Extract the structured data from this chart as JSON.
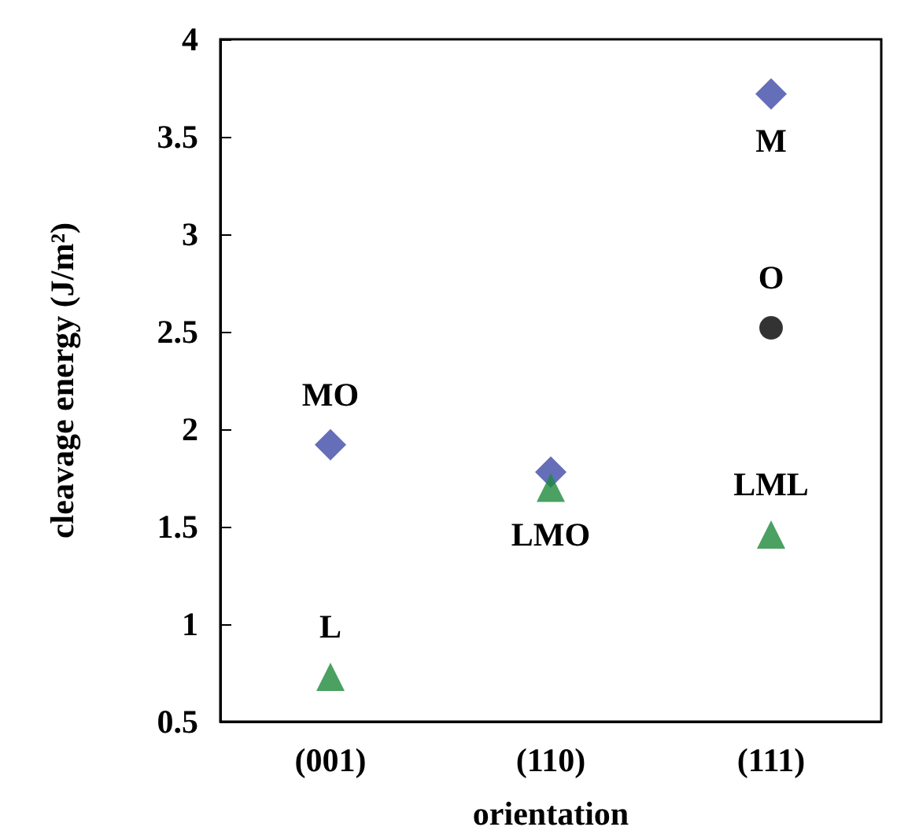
{
  "chart_data": {
    "type": "scatter",
    "xlabel": "orientation",
    "ylabel": "cleavage energy (J/m²)",
    "categories": [
      "(001)",
      "(110)",
      "(111)"
    ],
    "series": [
      {
        "color": "#3f4aa6",
        "marker": "diamond",
        "x": [
          "(001)",
          "(110)",
          "(111)"
        ],
        "values": [
          1.92,
          1.78,
          3.72
        ]
      },
      {
        "color": "#1d8a3a",
        "marker": "triangle",
        "x": [
          "(001)",
          "(110)",
          "(111)"
        ],
        "values": [
          0.73,
          1.7,
          1.46
        ]
      },
      {
        "color": "#000000",
        "marker": "circle",
        "x": [
          "(111)"
        ],
        "values": [
          2.52
        ]
      }
    ],
    "ylim": [
      0.5,
      4
    ],
    "yticks": [
      0.5,
      1,
      1.5,
      2,
      2.5,
      3,
      3.5,
      4
    ],
    "grid": false,
    "annotations": [
      {
        "text": "MO",
        "x": "(001)",
        "y": 1.92
      },
      {
        "text": "L",
        "x": "(001)",
        "y": 0.73
      },
      {
        "text": "LMO",
        "x": "(110)",
        "y": 1.7
      },
      {
        "text": "M",
        "x": "(111)",
        "y": 3.72
      },
      {
        "text": "O",
        "x": "(111)",
        "y": 2.52
      },
      {
        "text": "LML",
        "x": "(111)",
        "y": 1.46
      }
    ]
  }
}
